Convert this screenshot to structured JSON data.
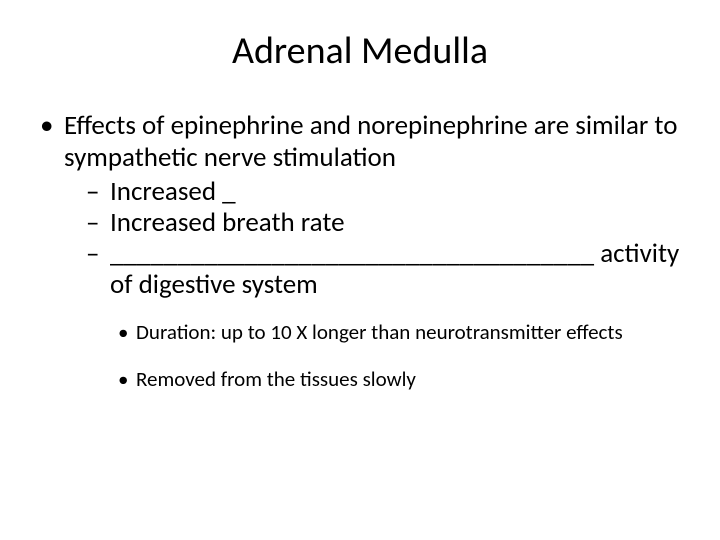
{
  "slide": {
    "title": "Adrenal Medulla",
    "background_color": "#ffffff",
    "text_color": "#000000",
    "title_fontsize": 38,
    "body_fontsize": 27,
    "sub_fontsize": 21,
    "bullets": {
      "lvl1": [
        {
          "text": "Effects of epinephrine and norepinephrine are similar to sympathetic nerve stimulation",
          "lvl2": [
            {
              "text": ""
            },
            {
              "text": "Increased _"
            },
            {
              "text": "Increased breath rate"
            },
            {
              "text": "____________________________________  activity of digestive system"
            }
          ],
          "lvl3": [
            {
              "text": "Duration:  up to 10 X longer than neurotransmitter effects"
            },
            {
              "text": "Removed from the tissues slowly"
            }
          ]
        }
      ]
    }
  }
}
